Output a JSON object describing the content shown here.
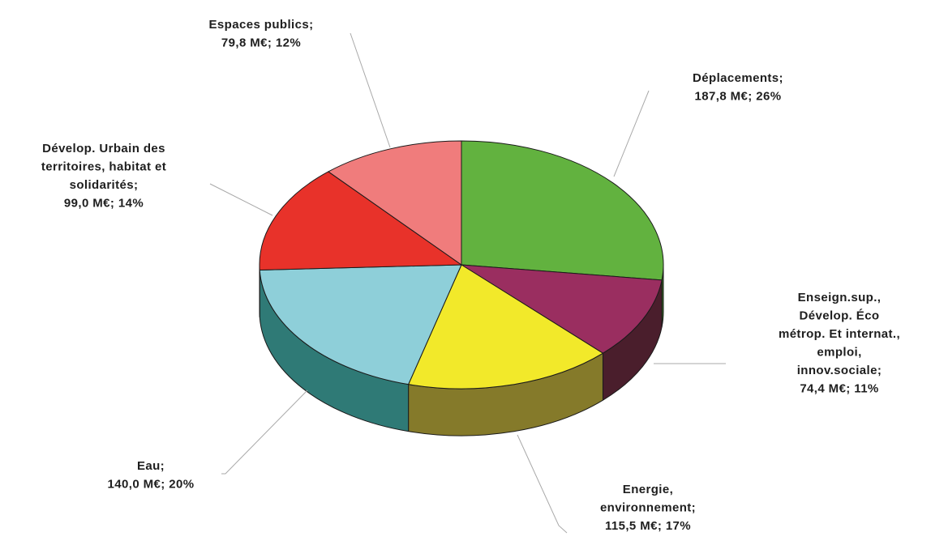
{
  "chart_data": {
    "type": "pie",
    "title": "",
    "style": "3d",
    "slices": [
      {
        "name": "Déplacements",
        "value": 187.8,
        "percent": 26,
        "color": "#62b23f",
        "side_color": "#3c7a26",
        "label_lines": [
          "Déplacements;",
          "187,8 M€; 26%"
        ]
      },
      {
        "name": "Enseign.sup., Dévelop. Éco métrop. Et internat., emploi, innov.sociale",
        "value": 74.4,
        "percent": 11,
        "color": "#9a2e60",
        "side_color": "#4a1e2c",
        "label_lines": [
          "Enseign.sup.,",
          "Dévelop. Éco",
          "métrop. Et internat.,",
          "emploi,",
          "innov.sociale;",
          "74,4 M€; 11%"
        ]
      },
      {
        "name": "Energie, environnement",
        "value": 115.5,
        "percent": 17,
        "color": "#f2e92a",
        "side_color": "#857a2a",
        "label_lines": [
          "Energie,",
          "environnement;",
          "115,5 M€; 17%"
        ]
      },
      {
        "name": "Eau",
        "value": 140.0,
        "percent": 20,
        "color": "#8ecfd9",
        "side_color": "#2f7a76",
        "label_lines": [
          "Eau;",
          "140,0 M€; 20%"
        ]
      },
      {
        "name": "Dévelop. Urbain des territoires, habitat et solidarités",
        "value": 99.0,
        "percent": 14,
        "color": "#e8322a",
        "side_color": "#a92420",
        "label_lines": [
          "Dévelop. Urbain des",
          "territoires, habitat et",
          "solidarités;",
          "99,0 M€; 14%"
        ]
      },
      {
        "name": "Espaces publics",
        "value": 79.8,
        "percent": 12,
        "color": "#f07c7c",
        "side_color": "#b45b5b",
        "label_lines": [
          "Espaces publics;",
          "79,8 M€; 12%"
        ]
      }
    ]
  }
}
